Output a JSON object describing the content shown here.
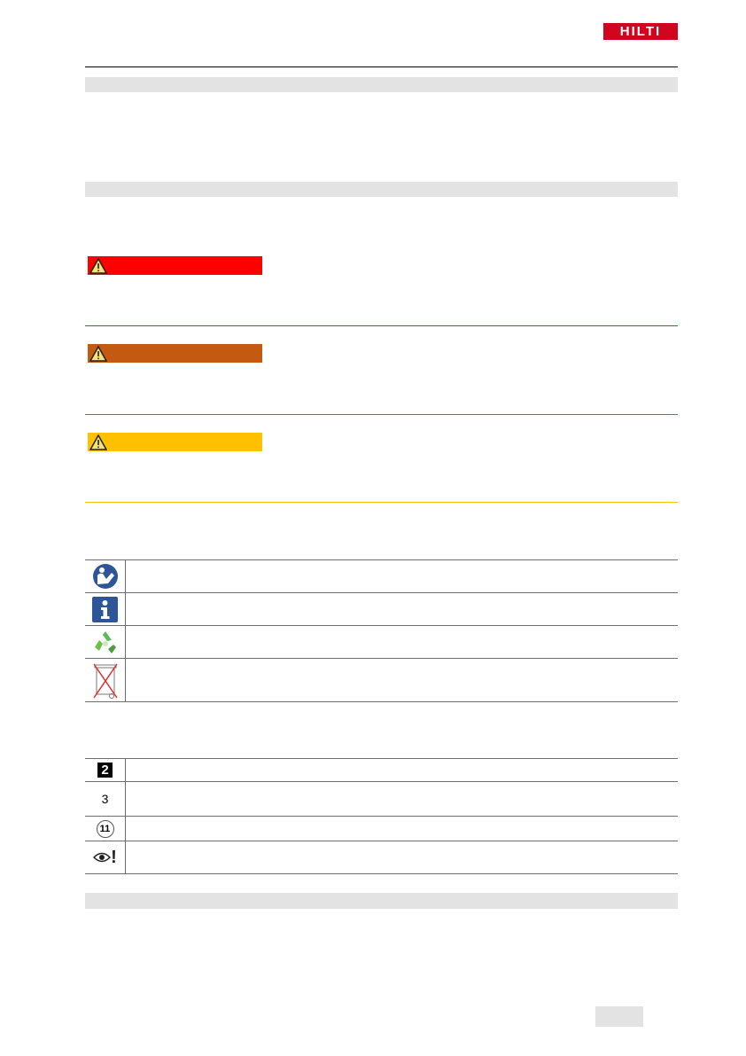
{
  "header": {
    "logo_text": "HILTI",
    "brand_color": "#d2051e"
  },
  "signal_words": [
    {
      "level": "danger",
      "color": "#ff0000",
      "icon": "warning-triangle-icon"
    },
    {
      "level": "warning",
      "color": "#c45911",
      "icon": "warning-triangle-icon"
    },
    {
      "level": "caution",
      "color": "#ffc000",
      "icon": "warning-triangle-icon"
    }
  ],
  "symbols_table": [
    "read-manual-icon",
    "info-icon",
    "recycle-icon",
    "crossed-bin-icon"
  ],
  "illustration_symbols": {
    "boxed_number": "2",
    "plain_number": "3",
    "circled_number": "11",
    "eye_icon": "eye-exclamation-icon",
    "exclamation": "!"
  }
}
